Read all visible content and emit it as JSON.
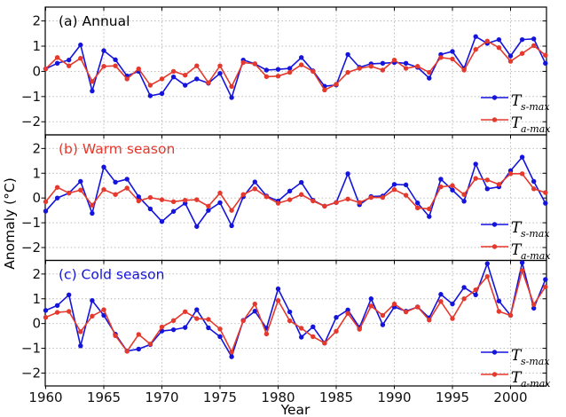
{
  "figure": {
    "ylabel": "Anomaly (°C)",
    "xlabel": "Year",
    "series_colors": {
      "s_max": "#1414dc",
      "a_max": "#e4392c"
    },
    "grid_color": "#b3b3b3",
    "legend": [
      {
        "main": "T",
        "sub": "s-max",
        "color": "#1414dc"
      },
      {
        "main": "T",
        "sub": "a-max",
        "color": "#e4392c"
      }
    ]
  },
  "chart_data": [
    {
      "type": "line",
      "title": "(a) Annual",
      "title_color": "#000000",
      "x": [
        1960,
        1961,
        1962,
        1963,
        1964,
        1965,
        1966,
        1967,
        1968,
        1969,
        1970,
        1971,
        1972,
        1973,
        1974,
        1975,
        1976,
        1977,
        1978,
        1979,
        1980,
        1981,
        1982,
        1983,
        1984,
        1985,
        1986,
        1987,
        1988,
        1989,
        1990,
        1991,
        1992,
        1993,
        1994,
        1995,
        1996,
        1997,
        1998,
        1999,
        2000,
        2001,
        2002,
        2003
      ],
      "series": [
        {
          "name": "T_s-max",
          "color": "#1414dc",
          "values": [
            0.1,
            0.32,
            0.45,
            1.05,
            -0.78,
            0.82,
            0.46,
            -0.18,
            0.0,
            -0.97,
            -0.88,
            -0.22,
            -0.55,
            -0.3,
            -0.47,
            -0.08,
            -1.04,
            0.45,
            0.3,
            0.05,
            0.08,
            0.12,
            0.55,
            0.02,
            -0.59,
            -0.54,
            0.67,
            0.16,
            0.3,
            0.32,
            0.35,
            0.32,
            0.16,
            -0.27,
            0.67,
            0.79,
            0.12,
            1.38,
            1.11,
            1.26,
            0.61,
            1.26,
            1.29,
            0.32
          ]
        },
        {
          "name": "T_a-max",
          "color": "#e4392c",
          "values": [
            0.1,
            0.55,
            0.22,
            0.52,
            -0.4,
            0.2,
            0.22,
            -0.3,
            0.1,
            -0.55,
            -0.3,
            0.0,
            -0.15,
            0.22,
            -0.45,
            0.22,
            -0.6,
            0.35,
            0.3,
            -0.21,
            -0.19,
            -0.04,
            0.26,
            0.0,
            -0.74,
            -0.51,
            -0.04,
            0.12,
            0.2,
            0.05,
            0.45,
            0.12,
            0.2,
            -0.04,
            0.55,
            0.49,
            0.05,
            0.87,
            1.2,
            0.94,
            0.4,
            0.71,
            1.02,
            0.64
          ]
        }
      ],
      "xlim": [
        1960,
        2003.1
      ],
      "ylim": [
        -2.52,
        2.55
      ],
      "yticks": [
        -2,
        -1,
        0,
        1,
        2
      ],
      "xticks": [
        1960,
        1965,
        1970,
        1975,
        1980,
        1985,
        1990,
        1995,
        2000
      ],
      "grid": true,
      "legend_position": "lower right"
    },
    {
      "type": "line",
      "title": "(b) Warm season",
      "title_color": "#e4392c",
      "x": [
        1960,
        1961,
        1962,
        1963,
        1964,
        1965,
        1966,
        1967,
        1968,
        1969,
        1970,
        1971,
        1972,
        1973,
        1974,
        1975,
        1976,
        1977,
        1978,
        1979,
        1980,
        1981,
        1982,
        1983,
        1984,
        1985,
        1986,
        1987,
        1988,
        1989,
        1990,
        1991,
        1992,
        1993,
        1994,
        1995,
        1996,
        1997,
        1998,
        1999,
        2000,
        2001,
        2002,
        2003
      ],
      "series": [
        {
          "name": "T_s-max",
          "color": "#1414dc",
          "values": [
            -0.53,
            0.0,
            0.2,
            0.67,
            -0.62,
            1.25,
            0.64,
            0.76,
            0.05,
            -0.44,
            -0.95,
            -0.54,
            -0.21,
            -1.15,
            -0.5,
            -0.19,
            -1.12,
            0.05,
            0.65,
            0.08,
            -0.12,
            0.28,
            0.63,
            -0.09,
            -0.33,
            -0.18,
            0.98,
            -0.27,
            0.06,
            0.08,
            0.55,
            0.53,
            -0.2,
            -0.75,
            0.76,
            0.32,
            -0.13,
            1.37,
            0.37,
            0.45,
            1.1,
            1.65,
            0.67,
            -0.21
          ]
        },
        {
          "name": "T_a-max",
          "color": "#e4392c",
          "values": [
            -0.15,
            0.43,
            0.2,
            0.32,
            -0.29,
            0.34,
            0.14,
            0.4,
            -0.12,
            0.02,
            -0.07,
            -0.15,
            -0.09,
            -0.07,
            -0.33,
            0.2,
            -0.5,
            0.14,
            0.37,
            0.05,
            -0.21,
            -0.07,
            0.14,
            -0.12,
            -0.33,
            -0.18,
            -0.04,
            -0.18,
            0.02,
            0.02,
            0.34,
            0.11,
            -0.4,
            -0.44,
            0.45,
            0.5,
            0.14,
            0.79,
            0.73,
            0.55,
            0.98,
            0.98,
            0.37,
            0.22
          ]
        }
      ],
      "xlim": [
        1960,
        2003.1
      ],
      "ylim": [
        -2.52,
        2.55
      ],
      "yticks": [
        -2,
        -1,
        0,
        1,
        2
      ],
      "xticks": [
        1960,
        1965,
        1970,
        1975,
        1980,
        1985,
        1990,
        1995,
        2000
      ],
      "grid": true,
      "legend_position": "lower right"
    },
    {
      "type": "line",
      "title": "(c) Cold season",
      "title_color": "#1414dc",
      "x": [
        1960,
        1961,
        1962,
        1963,
        1964,
        1965,
        1966,
        1967,
        1968,
        1969,
        1970,
        1971,
        1972,
        1973,
        1974,
        1975,
        1976,
        1977,
        1978,
        1979,
        1980,
        1981,
        1982,
        1983,
        1984,
        1985,
        1986,
        1987,
        1988,
        1989,
        1990,
        1991,
        1992,
        1993,
        1994,
        1995,
        1996,
        1997,
        1998,
        1999,
        2000,
        2001,
        2002,
        2003
      ],
      "series": [
        {
          "name": "T_s-max",
          "color": "#1414dc",
          "values": [
            0.53,
            0.73,
            1.16,
            -0.9,
            0.93,
            0.33,
            -0.43,
            -1.11,
            -1.03,
            -0.85,
            -0.3,
            -0.25,
            -0.16,
            0.56,
            -0.17,
            -0.53,
            -1.34,
            0.13,
            0.5,
            -0.19,
            1.4,
            0.47,
            -0.55,
            -0.13,
            -0.79,
            0.25,
            0.55,
            -0.16,
            1.0,
            -0.05,
            0.67,
            0.5,
            0.67,
            0.23,
            1.18,
            0.79,
            1.46,
            1.16,
            2.42,
            0.91,
            0.33,
            2.46,
            0.62,
            1.78
          ]
        },
        {
          "name": "T_a-max",
          "color": "#e4392c",
          "values": [
            0.25,
            0.45,
            0.49,
            -0.33,
            0.3,
            0.56,
            -0.49,
            -1.12,
            -0.44,
            -0.83,
            -0.14,
            0.12,
            0.48,
            0.2,
            0.17,
            -0.22,
            -1.15,
            0.11,
            0.79,
            -0.42,
            0.93,
            0.11,
            -0.19,
            -0.53,
            -0.79,
            -0.31,
            0.41,
            -0.23,
            0.71,
            0.33,
            0.79,
            0.47,
            0.67,
            0.14,
            0.89,
            0.2,
            1.0,
            1.36,
            1.9,
            0.49,
            0.33,
            2.14,
            0.77,
            1.48
          ]
        }
      ],
      "xlim": [
        1960,
        2003.1
      ],
      "ylim": [
        -2.52,
        2.55
      ],
      "yticks": [
        -2,
        -1,
        0,
        1,
        2
      ],
      "xticks": [
        1960,
        1965,
        1970,
        1975,
        1980,
        1985,
        1990,
        1995,
        2000
      ],
      "grid": true,
      "legend_position": "lower right"
    }
  ]
}
